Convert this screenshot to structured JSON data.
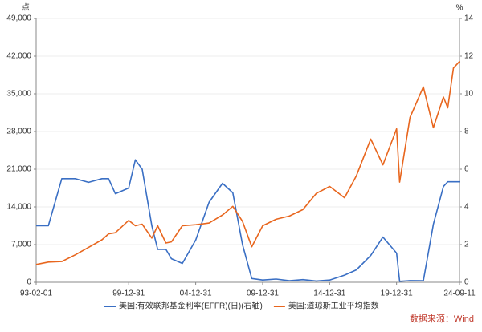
{
  "chart_data": {
    "type": "line",
    "y_label": "点",
    "y2_label": "%",
    "x": [
      "93-02-01",
      "94-01-01",
      "95-01-01",
      "96-01-01",
      "97-01-01",
      "98-01-01",
      "98-07-01",
      "99-01-01",
      "99-12-31",
      "00-06-30",
      "01-01-01",
      "01-09-21",
      "02-03-01",
      "02-10-09",
      "03-03-11",
      "04-01-01",
      "05-01-01",
      "06-01-01",
      "07-01-01",
      "07-10-09",
      "08-06-30",
      "09-03-09",
      "10-01-01",
      "11-01-01",
      "12-01-01",
      "13-01-01",
      "14-01-01",
      "15-01-01",
      "16-02-11",
      "17-01-01",
      "18-01-26",
      "18-12-24",
      "19-12-31",
      "20-03-23",
      "20-12-31",
      "21-12-31",
      "22-09-30",
      "23-06-30",
      "23-10-27",
      "24-03-31",
      "24-09-11"
    ],
    "xlim": [
      "93-02-01",
      "24-09-11"
    ],
    "xticks": [
      "93-02-01",
      "99-12-31",
      "04-12-31",
      "09-12-31",
      "14-12-31",
      "19-12-31",
      "24-09-11"
    ],
    "ylim": [
      0,
      49000
    ],
    "yticks": [
      0,
      {
        "value": 7000,
        "label": "7,000"
      },
      {
        "value": 14000,
        "label": "14,000"
      },
      {
        "value": 21000,
        "label": "21,000"
      },
      {
        "value": 28000,
        "label": "28,000"
      },
      {
        "value": 35000,
        "label": "35,000"
      },
      {
        "value": 42000,
        "label": "42,000"
      },
      {
        "value": 49000,
        "label": "49,000"
      }
    ],
    "y2lim": [
      0,
      14
    ],
    "y2ticks": [
      0,
      2,
      4,
      6,
      8,
      10,
      12,
      14
    ],
    "grid": true,
    "series": [
      {
        "name": "美国:有效联邦基金利率(EFFR)(日)(右轴)",
        "color": "#3a6fc4",
        "axis": "y2",
        "values": [
          3.0,
          3.0,
          5.5,
          5.5,
          5.3,
          5.5,
          5.5,
          4.7,
          5.0,
          6.5,
          6.0,
          3.0,
          1.75,
          1.75,
          1.25,
          1.0,
          2.25,
          4.25,
          5.25,
          4.75,
          2.0,
          0.2,
          0.12,
          0.17,
          0.08,
          0.14,
          0.07,
          0.12,
          0.38,
          0.66,
          1.42,
          2.4,
          1.55,
          0.05,
          0.09,
          0.08,
          3.08,
          5.08,
          5.33,
          5.33,
          5.33
        ]
      },
      {
        "name": "美国:道琼斯工业平均指数",
        "color": "#e8661e",
        "values": [
          3300,
          3750,
          3850,
          5100,
          6500,
          7900,
          9000,
          9200,
          11500,
          10500,
          10800,
          8200,
          10500,
          7300,
          7500,
          10500,
          10700,
          11000,
          12500,
          14100,
          11300,
          6600,
          10500,
          11700,
          12300,
          13500,
          16500,
          17800,
          15700,
          19800,
          26600,
          21800,
          28500,
          18600,
          30600,
          36300,
          28700,
          34400,
          32400,
          39800,
          41000
        ]
      }
    ],
    "source": "数据来源：Wind"
  }
}
